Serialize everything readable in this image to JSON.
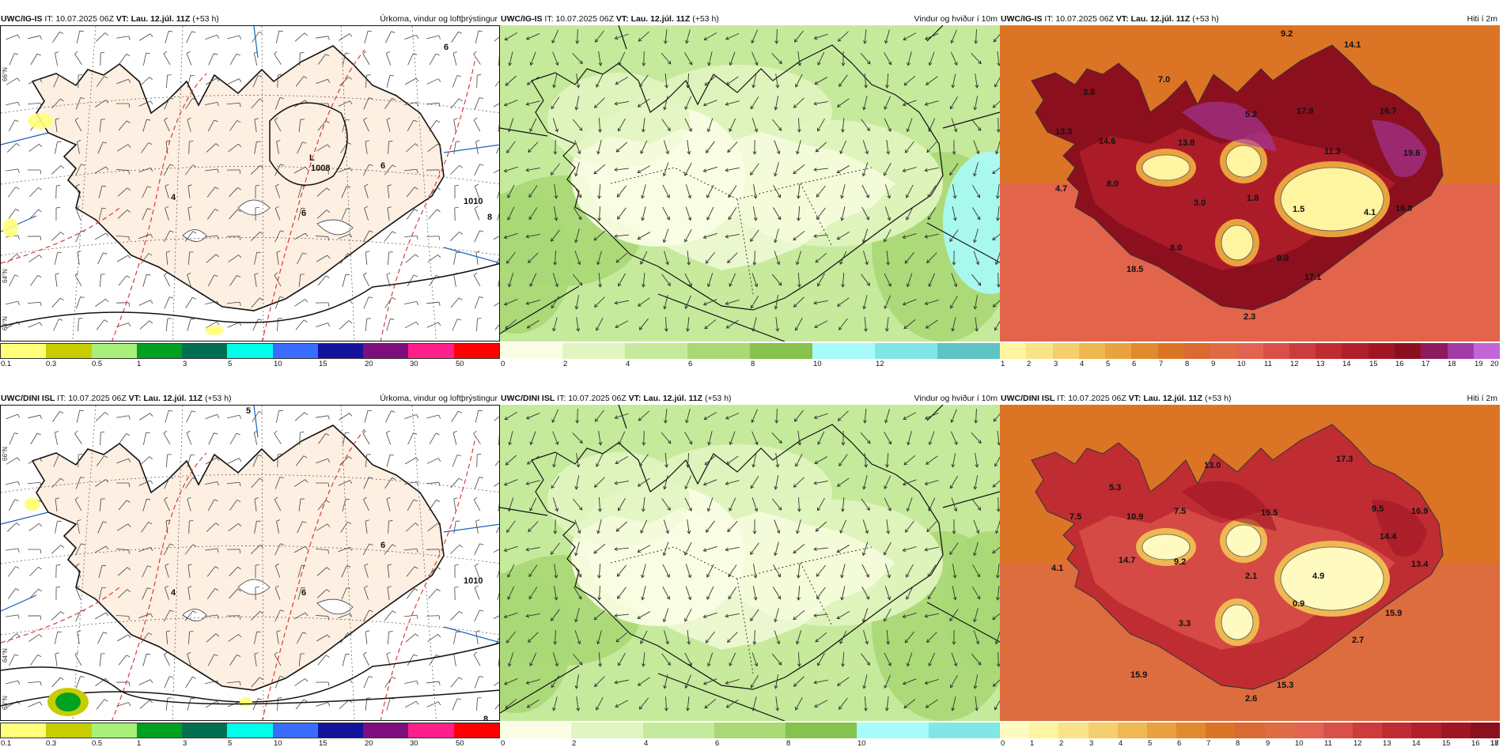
{
  "panels": [
    {
      "id": "p1",
      "model": "UWC/IG-IS",
      "it_label": "IT:",
      "it": "10.07.2025 06Z",
      "vt_label": "VT:",
      "vt": "Lau. 12.júl. 11Z",
      "lead": "(+53 h)",
      "title": "Úrkoma, vindur og loftþrýstingur",
      "legend": {
        "colors": [
          "#ffff7a",
          "#c8cd00",
          "#a8f07a",
          "#00a020",
          "#006f4f",
          "#00ffea",
          "#3a6cff",
          "#12149c",
          "#7e0e7e",
          "#ff1f8c",
          "#ff0000"
        ],
        "ticks": [
          "0.1",
          "0.3",
          "0.5",
          "1",
          "3",
          "5",
          "10",
          "15",
          "20",
          "30",
          "50"
        ]
      },
      "labels": [
        {
          "text": "L",
          "kind": "low"
        },
        {
          "text": "1008",
          "kind": "pressure"
        },
        {
          "text": "1010",
          "kind": "pressure"
        },
        {
          "text": "4"
        },
        {
          "text": "6"
        },
        {
          "text": "6"
        },
        {
          "text": "6"
        },
        {
          "text": "8"
        }
      ]
    },
    {
      "id": "p2",
      "model": "UWC/IG-IS",
      "it_label": "IT:",
      "it": "10.07.2025 06Z",
      "vt_label": "VT:",
      "vt": "Lau. 12.júl. 11Z",
      "lead": "(+53 h)",
      "title": "Vindur og hviður í 10m",
      "legend": {
        "colors": [
          "#fbfee5",
          "#e1f5c0",
          "#c6ea9c",
          "#a9d875",
          "#86c24e",
          "#a8fbfb",
          "#80e6e6",
          "#5ec3c3"
        ],
        "ticks": [
          "0",
          "2",
          "4",
          "6",
          "8",
          "10",
          "12"
        ]
      }
    },
    {
      "id": "p3",
      "model": "UWC/IG-IS",
      "it_label": "IT:",
      "it": "10.07.2025 06Z",
      "vt_label": "VT:",
      "vt": "Lau. 12.júl. 11Z",
      "lead": "(+53 h)",
      "title": "Hiti í 2m",
      "legend": {
        "colors": [
          "#fff4a0",
          "#fbe38a",
          "#f5cf6e",
          "#eeb852",
          "#e9a23d",
          "#e28a2e",
          "#dc7425",
          "#d86a32",
          "#dd6b43",
          "#e26350",
          "#d85048",
          "#cc3c3c",
          "#bf2c32",
          "#b01f2a",
          "#a01624",
          "#8c0f1e",
          "#8b1b5e",
          "#a33aa6",
          "#c265d6"
        ],
        "ticks": [
          "1",
          "2",
          "3",
          "4",
          "5",
          "6",
          "7",
          "8",
          "9",
          "10",
          "11",
          "12",
          "13",
          "14",
          "15",
          "16",
          "17",
          "18",
          "19",
          "20"
        ]
      },
      "labels": [
        "9.2",
        "14.1",
        "7.0",
        "3.8",
        "13.3",
        "14.6",
        "13.8",
        "5.2",
        "17.9",
        "16.7",
        "11.3",
        "19.6",
        "4.7",
        "8.0",
        "3.0",
        "1.8",
        "1.5",
        "4.1",
        "16.0",
        "8.0",
        "9.0",
        "18.5",
        "17.1",
        "2.3"
      ]
    },
    {
      "id": "p4",
      "model": "UWC/DINI ISL",
      "it_label": "IT:",
      "it": "10.07.2025 06Z",
      "vt_label": "VT:",
      "vt": "Lau. 12.júl. 11Z",
      "lead": "(+53 h)",
      "title": "Úrkoma, vindur og loftþrýstingur",
      "legend": {
        "colors": [
          "#ffff7a",
          "#c8cd00",
          "#a8f07a",
          "#00a020",
          "#006f4f",
          "#00ffea",
          "#3a6cff",
          "#12149c",
          "#7e0e7e",
          "#ff1f8c",
          "#ff0000"
        ],
        "ticks": [
          "0.1",
          "0.3",
          "0.5",
          "1",
          "3",
          "5",
          "10",
          "15",
          "20",
          "30",
          "50"
        ]
      },
      "labels": [
        {
          "text": "1010",
          "kind": "pressure"
        },
        {
          "text": "4"
        },
        {
          "text": "6"
        },
        {
          "text": "6"
        },
        {
          "text": "8"
        },
        {
          "text": "5"
        }
      ]
    },
    {
      "id": "p5",
      "model": "UWC/DINI ISL",
      "it_label": "IT:",
      "it": "10.07.2025 06Z",
      "vt_label": "VT:",
      "vt": "Lau. 12.júl. 11Z",
      "lead": "(+53 h)",
      "title": "Vindur og hviður í 10m",
      "legend": {
        "colors": [
          "#fbfee5",
          "#e1f5c0",
          "#c6ea9c",
          "#a9d875",
          "#86c24e",
          "#a8fbfb",
          "#80e6e6"
        ],
        "ticks": [
          "0",
          "2",
          "4",
          "6",
          "8",
          "10"
        ]
      }
    },
    {
      "id": "p6",
      "model": "UWC/DINI ISL",
      "it_label": "IT:",
      "it": "10.07.2025 06Z",
      "vt_label": "VT:",
      "vt": "Lau. 12.júl. 11Z",
      "lead": "(+53 h)",
      "title": "Hiti í 2m",
      "legend": {
        "colors": [
          "#fffbc0",
          "#fff4a0",
          "#fbe38a",
          "#f5cf6e",
          "#eeb852",
          "#e9a23d",
          "#e28a2e",
          "#dc7425",
          "#d86a32",
          "#dd6b43",
          "#e26350",
          "#d85048",
          "#cc3c3c",
          "#bf2c32",
          "#b01f2a",
          "#a01624",
          "#8c0f1e"
        ],
        "ticks": [
          "0",
          "1",
          "2",
          "3",
          "4",
          "5",
          "6",
          "7",
          "8",
          "9",
          "10",
          "11",
          "12",
          "13",
          "14",
          "15",
          "16",
          "17",
          "18"
        ]
      },
      "labels": [
        "13.0",
        "17.3",
        "5.3",
        "7.5",
        "10.9",
        "7.5",
        "4.1",
        "15.5",
        "9.5",
        "16.9",
        "14.7",
        "9.2",
        "14.4",
        "13.4",
        "4.9",
        "2.1",
        "3.3",
        "0.9",
        "15.9",
        "2.7",
        "15.9",
        "15.3",
        "2.6"
      ]
    }
  ],
  "axis_labels": {
    "n66": "66°N",
    "n64": "64°N",
    "n63": "63°N"
  }
}
